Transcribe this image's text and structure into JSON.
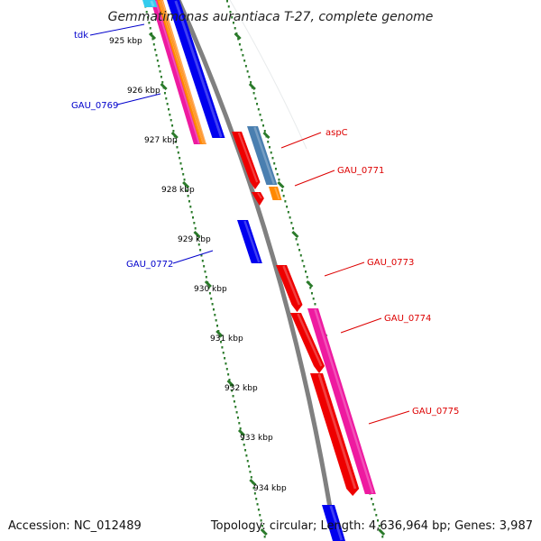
{
  "title": "Gemmatimonas aurantiaca T-27, complete genome",
  "accession": "Accession: NC_012489",
  "topology": "Topology: circular; Length: 4,636,964 bp; Genes: 3,987",
  "colors": {
    "backbone": "#808080",
    "tick": "#2a7a2a",
    "forward_label": "#dd0000",
    "reverse_label": "#0000cc",
    "red": "#ee0000",
    "blue": "#0000ee",
    "steelblue": "#4a7fb0",
    "orange": "#ff8800",
    "magenta": "#ee1aa0",
    "cyan": "#33ccee"
  },
  "scale_labels": [
    "925 kbp",
    "926 kbp",
    "927 kbp",
    "928 kbp",
    "929 kbp",
    "930 kbp",
    "931 kbp",
    "932 kbp",
    "933 kbp",
    "934 kbp"
  ],
  "gene_labels": {
    "tdk": "tdk",
    "gau_0769": "GAU_0769",
    "aspc": "aspC",
    "gau_0771": "GAU_0771",
    "gau_0772": "GAU_0772",
    "gau_0773": "GAU_0773",
    "gau_0774": "GAU_0774",
    "gau_0775": "GAU_0775"
  }
}
